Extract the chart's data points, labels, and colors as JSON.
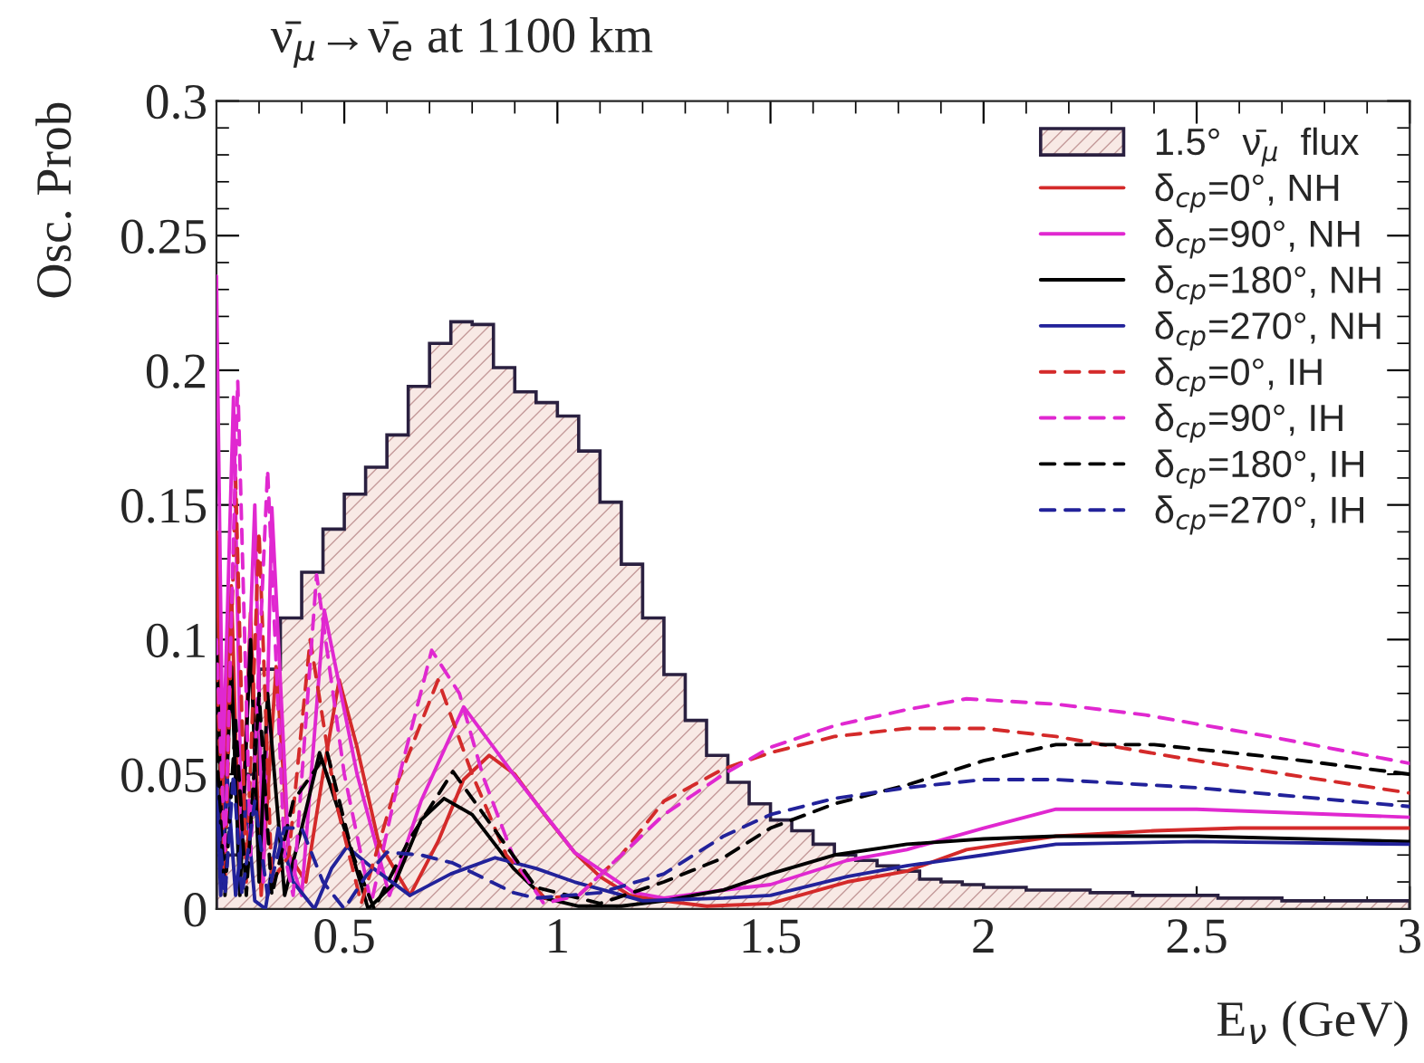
{
  "chart_data": {
    "type": "line",
    "title": "ν̄$_{μ}$→ν̄$_{e}$ at 1100 km",
    "xlabel": "E$_{ν}$ (GeV)",
    "ylabel": "Osc. Prob",
    "xlim": [
      0.2,
      3
    ],
    "ylim": [
      0,
      0.3
    ],
    "xticks": [
      0.5,
      1,
      1.5,
      2,
      2.5,
      3
    ],
    "yticks": [
      0,
      0.05,
      0.1,
      0.15,
      0.2,
      0.25,
      0.3
    ],
    "legend": "top right",
    "grid": false,
    "series": [
      {
        "type": "histogram",
        "name": "1.5°  ν̄$_{μ}$  flux",
        "color": "#2a2040",
        "bins": [
          0.2,
          0.25,
          0.3,
          0.35,
          0.4,
          0.45,
          0.5,
          0.55,
          0.6,
          0.65,
          0.7,
          0.75,
          0.8,
          0.85,
          0.9,
          0.95,
          1.0,
          1.05,
          1.1,
          1.15,
          1.2,
          1.25,
          1.3,
          1.35,
          1.4,
          1.45,
          1.5,
          1.55,
          1.6,
          1.65,
          1.7,
          1.75,
          1.8,
          1.85,
          1.9,
          1.95,
          2.0,
          2.05,
          2.1,
          2.15,
          2.2,
          2.25,
          2.3,
          2.35,
          2.4,
          2.45,
          2.5,
          2.55,
          2.6,
          2.65,
          2.7,
          2.75,
          2.8,
          2.85,
          2.9,
          2.95,
          3.0
        ],
        "values": [
          0.02,
          0.05,
          0.089,
          0.108,
          0.125,
          0.141,
          0.154,
          0.164,
          0.176,
          0.194,
          0.21,
          0.218,
          0.217,
          0.201,
          0.192,
          0.188,
          0.183,
          0.17,
          0.151,
          0.128,
          0.108,
          0.087,
          0.07,
          0.057,
          0.047,
          0.039,
          0.033,
          0.029,
          0.024,
          0.02,
          0.018,
          0.016,
          0.014,
          0.011,
          0.01,
          0.009,
          0.008,
          0.008,
          0.007,
          0.007,
          0.007,
          0.006,
          0.006,
          0.005,
          0.005,
          0.005,
          0.005,
          0.004,
          0.004,
          0.004,
          0.003,
          0.003,
          0.003,
          0.003,
          0.003,
          0.003
        ]
      },
      {
        "name": "δ$_{cp}$=0°, NH",
        "color": "#d42a2a",
        "line_style": "solid",
        "x": [
          0.2,
          0.215,
          0.235,
          0.255,
          0.28,
          0.305,
          0.34,
          0.37,
          0.41,
          0.45,
          0.488,
          0.53,
          0.58,
          0.654,
          0.72,
          0.78,
          0.84,
          0.9,
          0.97,
          1.04,
          1.1,
          1.17,
          1.25,
          1.35,
          1.5,
          1.68,
          1.82,
          1.96,
          2.17,
          2.4,
          2.6,
          2.8,
          3.0
        ],
        "values": [
          0.14,
          0.03,
          0.12,
          0.01,
          0.11,
          0.005,
          0.09,
          0.02,
          0.01,
          0.05,
          0.085,
          0.06,
          0.025,
          0.005,
          0.025,
          0.048,
          0.057,
          0.05,
          0.035,
          0.021,
          0.012,
          0.005,
          0.003,
          0.001,
          0.002,
          0.01,
          0.014,
          0.022,
          0.027,
          0.029,
          0.03,
          0.03,
          0.03
        ]
      },
      {
        "name": "δ$_{cp}$=90°, NH",
        "color": "#e028d0",
        "line_style": "solid",
        "x": [
          0.2,
          0.215,
          0.24,
          0.26,
          0.29,
          0.31,
          0.33,
          0.37,
          0.4,
          0.453,
          0.53,
          0.606,
          0.68,
          0.78,
          0.897,
          1.04,
          1.18,
          1.25,
          1.39,
          1.5,
          1.68,
          1.82,
          2.0,
          2.17,
          2.5,
          3.0
        ],
        "values": [
          0.235,
          0.05,
          0.19,
          0.02,
          0.15,
          0.01,
          0.149,
          0.02,
          0.005,
          0.111,
          0.05,
          0.005,
          0.04,
          0.075,
          0.05,
          0.021,
          0.006,
          0.004,
          0.007,
          0.009,
          0.018,
          0.022,
          0.03,
          0.037,
          0.037,
          0.034
        ]
      },
      {
        "name": "δ$_{cp}$=180°, NH",
        "color": "#000000",
        "line_style": "solid",
        "x": [
          0.2,
          0.215,
          0.235,
          0.255,
          0.28,
          0.3,
          0.32,
          0.36,
          0.4,
          0.442,
          0.5,
          0.556,
          0.62,
          0.68,
          0.734,
          0.8,
          0.897,
          0.97,
          1.05,
          1.15,
          1.25,
          1.39,
          1.5,
          1.65,
          1.82,
          2.0,
          2.17,
          2.5,
          3.0
        ],
        "values": [
          0.1,
          0.01,
          0.09,
          0.005,
          0.1,
          0.01,
          0.08,
          0.005,
          0.03,
          0.058,
          0.03,
          0.0,
          0.01,
          0.033,
          0.041,
          0.035,
          0.015,
          0.004,
          0.001,
          0.001,
          0.003,
          0.007,
          0.013,
          0.02,
          0.024,
          0.026,
          0.027,
          0.027,
          0.025
        ]
      },
      {
        "name": "δ$_{cp}$=270°, NH",
        "color": "#22229a",
        "line_style": "solid",
        "x": [
          0.2,
          0.21,
          0.225,
          0.245,
          0.27,
          0.29,
          0.315,
          0.345,
          0.38,
          0.43,
          0.47,
          0.506,
          0.56,
          0.654,
          0.75,
          0.854,
          0.95,
          1.04,
          1.2,
          1.39,
          1.5,
          1.68,
          1.82,
          2.0,
          2.17,
          2.5,
          3.0
        ],
        "values": [
          0.05,
          0.005,
          0.05,
          0.005,
          0.04,
          0.003,
          0.0,
          0.03,
          0.01,
          0.0,
          0.015,
          0.023,
          0.016,
          0.005,
          0.013,
          0.019,
          0.015,
          0.01,
          0.003,
          0.004,
          0.005,
          0.012,
          0.016,
          0.02,
          0.024,
          0.025,
          0.024
        ]
      },
      {
        "name": "δ$_{cp}$=0°, IH",
        "color": "#d42a2a",
        "line_style": "dashed",
        "x": [
          0.2,
          0.22,
          0.245,
          0.27,
          0.3,
          0.33,
          0.37,
          0.42,
          0.48,
          0.54,
          0.62,
          0.72,
          0.8,
          0.88,
          0.97,
          1.05,
          1.15,
          1.25,
          1.39,
          1.5,
          1.65,
          1.82,
          2.0,
          2.17,
          2.5,
          3.0
        ],
        "values": [
          0.09,
          0.01,
          0.16,
          0.01,
          0.14,
          0.01,
          0.02,
          0.1,
          0.04,
          0.002,
          0.045,
          0.085,
          0.05,
          0.02,
          0.004,
          0.005,
          0.02,
          0.04,
          0.052,
          0.058,
          0.064,
          0.067,
          0.067,
          0.064,
          0.055,
          0.043
        ]
      },
      {
        "name": "δ$_{cp}$=90°, IH",
        "color": "#e028d0",
        "line_style": "dashed",
        "x": [
          0.2,
          0.22,
          0.25,
          0.28,
          0.32,
          0.36,
          0.38,
          0.435,
          0.5,
          0.563,
          0.63,
          0.705,
          0.77,
          0.826,
          0.9,
          0.968,
          1.05,
          1.15,
          1.25,
          1.39,
          1.5,
          1.65,
          1.82,
          1.96,
          2.17,
          2.38,
          2.67,
          3.0
        ],
        "values": [
          0.1,
          0.02,
          0.196,
          0.02,
          0.163,
          0.02,
          0.005,
          0.124,
          0.05,
          0.002,
          0.05,
          0.096,
          0.08,
          0.049,
          0.018,
          0.002,
          0.005,
          0.02,
          0.035,
          0.05,
          0.06,
          0.068,
          0.074,
          0.078,
          0.076,
          0.072,
          0.064,
          0.054
        ]
      },
      {
        "name": "δ$_{cp}$=180°, IH",
        "color": "#000000",
        "line_style": "dashed",
        "x": [
          0.2,
          0.22,
          0.245,
          0.27,
          0.3,
          0.33,
          0.38,
          0.46,
          0.52,
          0.57,
          0.65,
          0.755,
          0.85,
          0.95,
          1.1,
          1.25,
          1.39,
          1.5,
          1.65,
          1.82,
          2.0,
          2.17,
          2.4,
          2.7,
          3.0
        ],
        "values": [
          0.06,
          0.005,
          0.07,
          0.005,
          0.08,
          0.005,
          0.04,
          0.058,
          0.02,
          0.0,
          0.025,
          0.051,
          0.03,
          0.008,
          0.002,
          0.01,
          0.019,
          0.03,
          0.039,
          0.046,
          0.055,
          0.061,
          0.061,
          0.056,
          0.05
        ]
      },
      {
        "name": "δ$_{cp}$=270°, IH",
        "color": "#22229a",
        "line_style": "dashed",
        "x": [
          0.2,
          0.22,
          0.24,
          0.26,
          0.29,
          0.32,
          0.36,
          0.4,
          0.45,
          0.5,
          0.55,
          0.6,
          0.68,
          0.755,
          0.897,
          0.95,
          1.1,
          1.25,
          1.39,
          1.5,
          1.65,
          1.82,
          2.0,
          2.17,
          2.5,
          3.0
        ],
        "values": [
          0.04,
          0.005,
          0.05,
          0.005,
          0.04,
          0.005,
          0.03,
          0.03,
          0.01,
          0.0,
          0.012,
          0.021,
          0.02,
          0.017,
          0.006,
          0.004,
          0.006,
          0.013,
          0.027,
          0.035,
          0.041,
          0.045,
          0.048,
          0.048,
          0.045,
          0.038
        ]
      }
    ]
  }
}
